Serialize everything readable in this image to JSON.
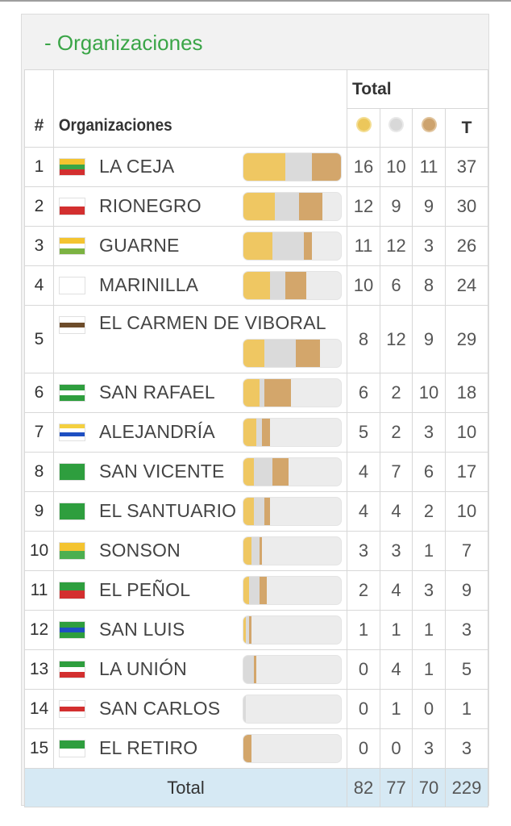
{
  "section_title": "- Organizaciones",
  "header": {
    "rank": "#",
    "org": "Organizaciones",
    "total": "Total",
    "t": "T"
  },
  "colors": {
    "gold": "#efc762",
    "silver": "#dadada",
    "bronze": "#d3a66b",
    "title": "#3aa547",
    "total_row": "#d6e9f4"
  },
  "rows": [
    {
      "rank": "1",
      "name": "LA CEJA",
      "gold": "16",
      "silver": "10",
      "bronze": "11",
      "total": "37",
      "flag": [
        "#f4c430",
        "#3aa547",
        "#d32f2f"
      ]
    },
    {
      "rank": "2",
      "name": "RIONEGRO",
      "gold": "12",
      "silver": "9",
      "bronze": "9",
      "total": "30",
      "flag": [
        "#ffffff",
        "#d32f2f"
      ]
    },
    {
      "rank": "3",
      "name": "GUARNE",
      "gold": "11",
      "silver": "12",
      "bronze": "3",
      "total": "26",
      "flag": [
        "#f4c430",
        "#ffffff",
        "#7cb342"
      ]
    },
    {
      "rank": "4",
      "name": "MARINILLA",
      "gold": "10",
      "silver": "6",
      "bronze": "8",
      "total": "24",
      "flag": [
        "#ffffff"
      ]
    },
    {
      "rank": "5",
      "name": "EL CARMEN DE VIBORAL",
      "gold": "8",
      "silver": "12",
      "bronze": "9",
      "total": "29",
      "flag": [
        "#ffffff",
        "#6d4c2a",
        "#ffffff"
      ]
    },
    {
      "rank": "6",
      "name": "SAN RAFAEL",
      "gold": "6",
      "silver": "2",
      "bronze": "10",
      "total": "18",
      "flag": [
        "#2e9e3e",
        "#ffffff",
        "#2e9e3e"
      ]
    },
    {
      "rank": "7",
      "name": "ALEJANDRÍA",
      "gold": "5",
      "silver": "2",
      "bronze": "3",
      "total": "10",
      "flag": [
        "#f4d03f",
        "#ffffff",
        "#1e4fc2",
        "#ffffff"
      ]
    },
    {
      "rank": "8",
      "name": "SAN VICENTE",
      "gold": "4",
      "silver": "7",
      "bronze": "6",
      "total": "17",
      "flag": [
        "#2e9e3e"
      ]
    },
    {
      "rank": "9",
      "name": "EL SANTUARIO",
      "gold": "4",
      "silver": "4",
      "bronze": "2",
      "total": "10",
      "flag": [
        "#2e9e3e"
      ]
    },
    {
      "rank": "10",
      "name": "SONSON",
      "gold": "3",
      "silver": "3",
      "bronze": "1",
      "total": "7",
      "flag": [
        "#f4c430",
        "#4caf50"
      ]
    },
    {
      "rank": "11",
      "name": "EL PEÑOL",
      "gold": "2",
      "silver": "4",
      "bronze": "3",
      "total": "9",
      "flag": [
        "#2e9e3e",
        "#d32f2f"
      ]
    },
    {
      "rank": "12",
      "name": "SAN LUIS",
      "gold": "1",
      "silver": "1",
      "bronze": "1",
      "total": "3",
      "flag": [
        "#2e9e3e",
        "#1e4fc2",
        "#2e9e3e"
      ]
    },
    {
      "rank": "13",
      "name": "LA UNIÓN",
      "gold": "0",
      "silver": "4",
      "bronze": "1",
      "total": "5",
      "flag": [
        "#2e9e3e",
        "#ffffff",
        "#d32f2f"
      ]
    },
    {
      "rank": "14",
      "name": "SAN CARLOS",
      "gold": "0",
      "silver": "1",
      "bronze": "0",
      "total": "1",
      "flag": [
        "#ffffff",
        "#d32f2f",
        "#ffffff"
      ]
    },
    {
      "rank": "15",
      "name": "EL RETIRO",
      "gold": "0",
      "silver": "0",
      "bronze": "3",
      "total": "3",
      "flag": [
        "#2e9e3e",
        "#ffffff"
      ]
    }
  ],
  "totals": {
    "label": "Total",
    "gold": "82",
    "silver": "77",
    "bronze": "70",
    "total": "229"
  }
}
